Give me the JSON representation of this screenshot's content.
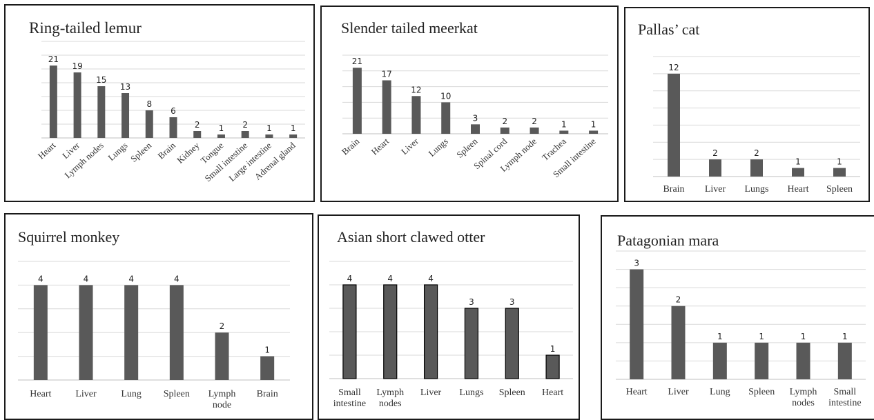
{
  "chart_data": [
    {
      "type": "bar",
      "title": "Ring-tailed lemur",
      "categories": [
        "Heart",
        "Liver",
        "Lymph nodes",
        "Lungs",
        "Spleen",
        "Brain",
        "Kidney",
        "Tongue",
        "Small intestine",
        "Large intestine",
        "Adrenal gland"
      ],
      "values": [
        21,
        19,
        15,
        13,
        8,
        6,
        2,
        1,
        2,
        1,
        1
      ],
      "ylim": [
        0,
        28
      ],
      "grid": true,
      "legend": "none"
    },
    {
      "type": "bar",
      "title": "Slender tailed meerkat",
      "categories": [
        "Brain",
        "Heart",
        "Liver",
        "Lungs",
        "Spleen",
        "Spinal cord",
        "Lymph node",
        "Trachea",
        "Small intestine"
      ],
      "values": [
        21,
        17,
        12,
        10,
        3,
        2,
        2,
        1,
        1
      ],
      "ylim": [
        0,
        25
      ],
      "grid": true,
      "legend": "none"
    },
    {
      "type": "bar",
      "title": "Pallas’ cat",
      "categories": [
        "Brain",
        "Liver",
        "Lungs",
        "Heart",
        "Spleen"
      ],
      "values": [
        12,
        2,
        2,
        1,
        1
      ],
      "ylim": [
        0,
        14
      ],
      "grid": true,
      "legend": "none"
    },
    {
      "type": "bar",
      "title": "Squirrel monkey",
      "categories": [
        "Heart",
        "Liver",
        "Lung",
        "Spleen",
        "Lymph node",
        "Brain"
      ],
      "values": [
        4,
        4,
        4,
        4,
        2,
        1
      ],
      "ylim": [
        0,
        5
      ],
      "grid": true,
      "legend": "none"
    },
    {
      "type": "bar",
      "title": "Asian short clawed otter",
      "categories": [
        "Small intestine",
        "Lymph nodes",
        "Liver",
        "Lungs",
        "Spleen",
        "Heart"
      ],
      "values": [
        4,
        4,
        4,
        3,
        3,
        1
      ],
      "ylim": [
        0,
        5
      ],
      "grid": true,
      "legend": "none"
    },
    {
      "type": "bar",
      "title": "Patagonian mara",
      "categories": [
        "Heart",
        "Liver",
        "Lung",
        "Spleen",
        "Lymph nodes",
        "Small intestine"
      ],
      "values": [
        3,
        2,
        1,
        1,
        1,
        1
      ],
      "ylim": [
        0,
        3.5
      ],
      "grid": true,
      "legend": "none"
    }
  ]
}
